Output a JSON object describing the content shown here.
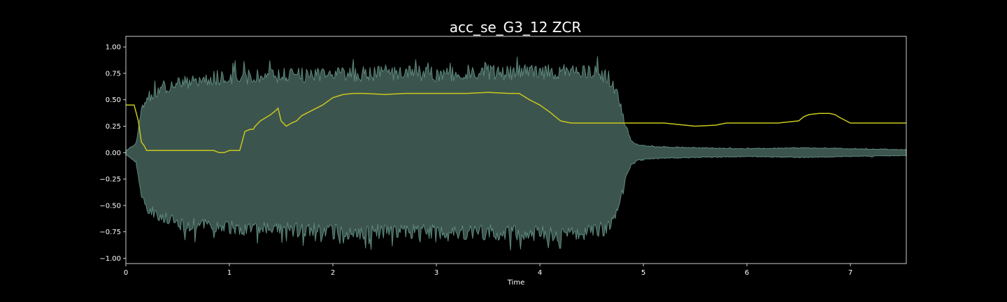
{
  "chart_data": {
    "type": "area",
    "title": "acc_se_G3_12 ZCR",
    "xlabel": "Time",
    "ylabel": "",
    "xlim": [
      0,
      7.54
    ],
    "ylim": [
      -1.05,
      1.1
    ],
    "x_ticks": [
      "0",
      "1",
      "2",
      "3",
      "4",
      "5",
      "6",
      "7"
    ],
    "y_ticks": [
      "1.00",
      "0.75",
      "0.50",
      "0.25",
      "0.00",
      "−0.25",
      "−0.50",
      "−0.75",
      "−1.00"
    ],
    "grid": false,
    "colors": {
      "background": "#000000",
      "axes_frame": "#ffffff",
      "waveform_fill": "#3c544e",
      "waveform_edge": "#5e8a7e",
      "zcr_line": "#c8c81e"
    },
    "series": [
      {
        "kind": "waveform-envelope",
        "x": [
          0,
          0.1,
          0.15,
          0.2,
          0.3,
          0.4,
          0.5,
          0.7,
          1.0,
          1.5,
          2.0,
          2.5,
          3.0,
          3.5,
          4.0,
          4.3,
          4.5,
          4.65,
          4.75,
          4.82,
          4.88,
          4.95,
          5.1,
          5.5,
          6.0,
          6.5,
          7.0,
          7.54
        ],
        "upper": [
          0.02,
          0.1,
          0.45,
          0.58,
          0.62,
          0.68,
          0.72,
          0.76,
          0.78,
          0.8,
          0.81,
          0.82,
          0.82,
          0.83,
          0.84,
          0.85,
          0.84,
          0.8,
          0.62,
          0.3,
          0.12,
          0.08,
          0.06,
          0.05,
          0.04,
          0.05,
          0.04,
          0.03
        ],
        "lower": [
          -0.02,
          -0.1,
          -0.45,
          -0.58,
          -0.63,
          -0.7,
          -0.74,
          -0.76,
          -0.78,
          -0.8,
          -0.82,
          -0.82,
          -0.82,
          -0.83,
          -0.84,
          -0.85,
          -0.83,
          -0.78,
          -0.6,
          -0.3,
          -0.12,
          -0.08,
          -0.06,
          -0.05,
          -0.04,
          -0.05,
          -0.04,
          -0.03
        ]
      },
      {
        "kind": "zcr-line",
        "x": [
          0,
          0.08,
          0.12,
          0.15,
          0.18,
          0.2,
          0.3,
          0.5,
          0.7,
          0.85,
          0.9,
          0.95,
          1.0,
          1.05,
          1.1,
          1.15,
          1.2,
          1.23,
          1.25,
          1.3,
          1.35,
          1.4,
          1.45,
          1.47,
          1.5,
          1.55,
          1.6,
          1.65,
          1.7,
          1.8,
          1.9,
          2.0,
          2.1,
          2.2,
          2.3,
          2.5,
          2.7,
          2.9,
          3.1,
          3.3,
          3.5,
          3.7,
          3.8,
          3.9,
          4.0,
          4.1,
          4.2,
          4.3,
          4.4,
          4.6,
          4.8,
          5.0,
          5.2,
          5.4,
          5.5,
          5.7,
          5.8,
          5.9,
          6.1,
          6.3,
          6.5,
          6.55,
          6.6,
          6.7,
          6.8,
          6.85,
          6.9,
          7.0,
          7.1,
          7.3,
          7.5,
          7.54
        ],
        "y": [
          0.45,
          0.45,
          0.3,
          0.1,
          0.06,
          0.02,
          0.02,
          0.02,
          0.02,
          0.02,
          0.0,
          0.0,
          0.02,
          0.02,
          0.02,
          0.2,
          0.22,
          0.22,
          0.25,
          0.3,
          0.33,
          0.36,
          0.4,
          0.42,
          0.3,
          0.25,
          0.28,
          0.3,
          0.35,
          0.4,
          0.45,
          0.52,
          0.55,
          0.56,
          0.56,
          0.55,
          0.56,
          0.56,
          0.56,
          0.56,
          0.57,
          0.56,
          0.56,
          0.5,
          0.45,
          0.38,
          0.3,
          0.28,
          0.28,
          0.28,
          0.28,
          0.28,
          0.28,
          0.26,
          0.25,
          0.26,
          0.28,
          0.28,
          0.28,
          0.28,
          0.3,
          0.34,
          0.36,
          0.37,
          0.37,
          0.36,
          0.33,
          0.28,
          0.28,
          0.28,
          0.28,
          0.28
        ]
      }
    ]
  }
}
